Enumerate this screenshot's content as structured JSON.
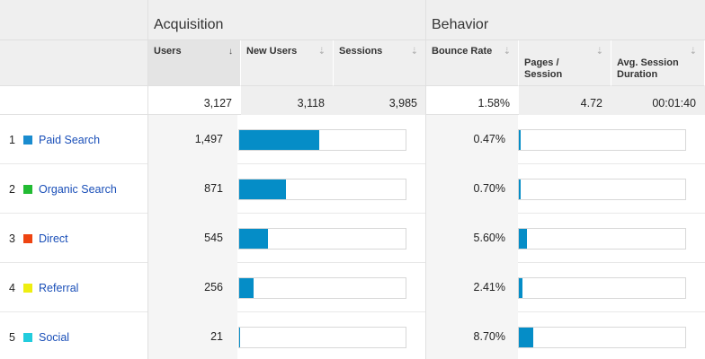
{
  "groups": {
    "acquisition": "Acquisition",
    "behavior": "Behavior"
  },
  "columns": {
    "users": "Users",
    "new_users": "New Users",
    "sessions": "Sessions",
    "bounce_rate": "Bounce Rate",
    "pages_session": "Pages /\nSession",
    "avg_session_duration": "Avg. Session\nDuration"
  },
  "sort": {
    "active_column": "users",
    "arrow_active": "↓",
    "arrow_inactive": "⇣"
  },
  "totals": {
    "users": "3,127",
    "new_users": "3,118",
    "sessions": "3,985",
    "bounce_rate": "1.58%",
    "pages_session": "4.72",
    "avg_session_duration": "00:01:40"
  },
  "rows": [
    {
      "rank": "1",
      "channel": "Paid Search",
      "color": "#1a8ccf",
      "users": "1,497",
      "new_users_fraction": 0.48,
      "bounce_rate": "0.47%",
      "pages_fraction": 0.01
    },
    {
      "rank": "2",
      "channel": "Organic Search",
      "color": "#22bb33",
      "users": "871",
      "new_users_fraction": 0.28,
      "bounce_rate": "0.70%",
      "pages_fraction": 0.01
    },
    {
      "rank": "3",
      "channel": "Direct",
      "color": "#ee4411",
      "users": "545",
      "new_users_fraction": 0.175,
      "bounce_rate": "5.60%",
      "pages_fraction": 0.05
    },
    {
      "rank": "4",
      "channel": "Referral",
      "color": "#eeee11",
      "users": "256",
      "new_users_fraction": 0.085,
      "bounce_rate": "2.41%",
      "pages_fraction": 0.02
    },
    {
      "rank": "5",
      "channel": "Social",
      "color": "#22ccdd",
      "users": "21",
      "new_users_fraction": 0.007,
      "bounce_rate": "8.70%",
      "pages_fraction": 0.085
    }
  ],
  "colors": {
    "bar": "#058dc7",
    "link": "#1a4fb8"
  }
}
